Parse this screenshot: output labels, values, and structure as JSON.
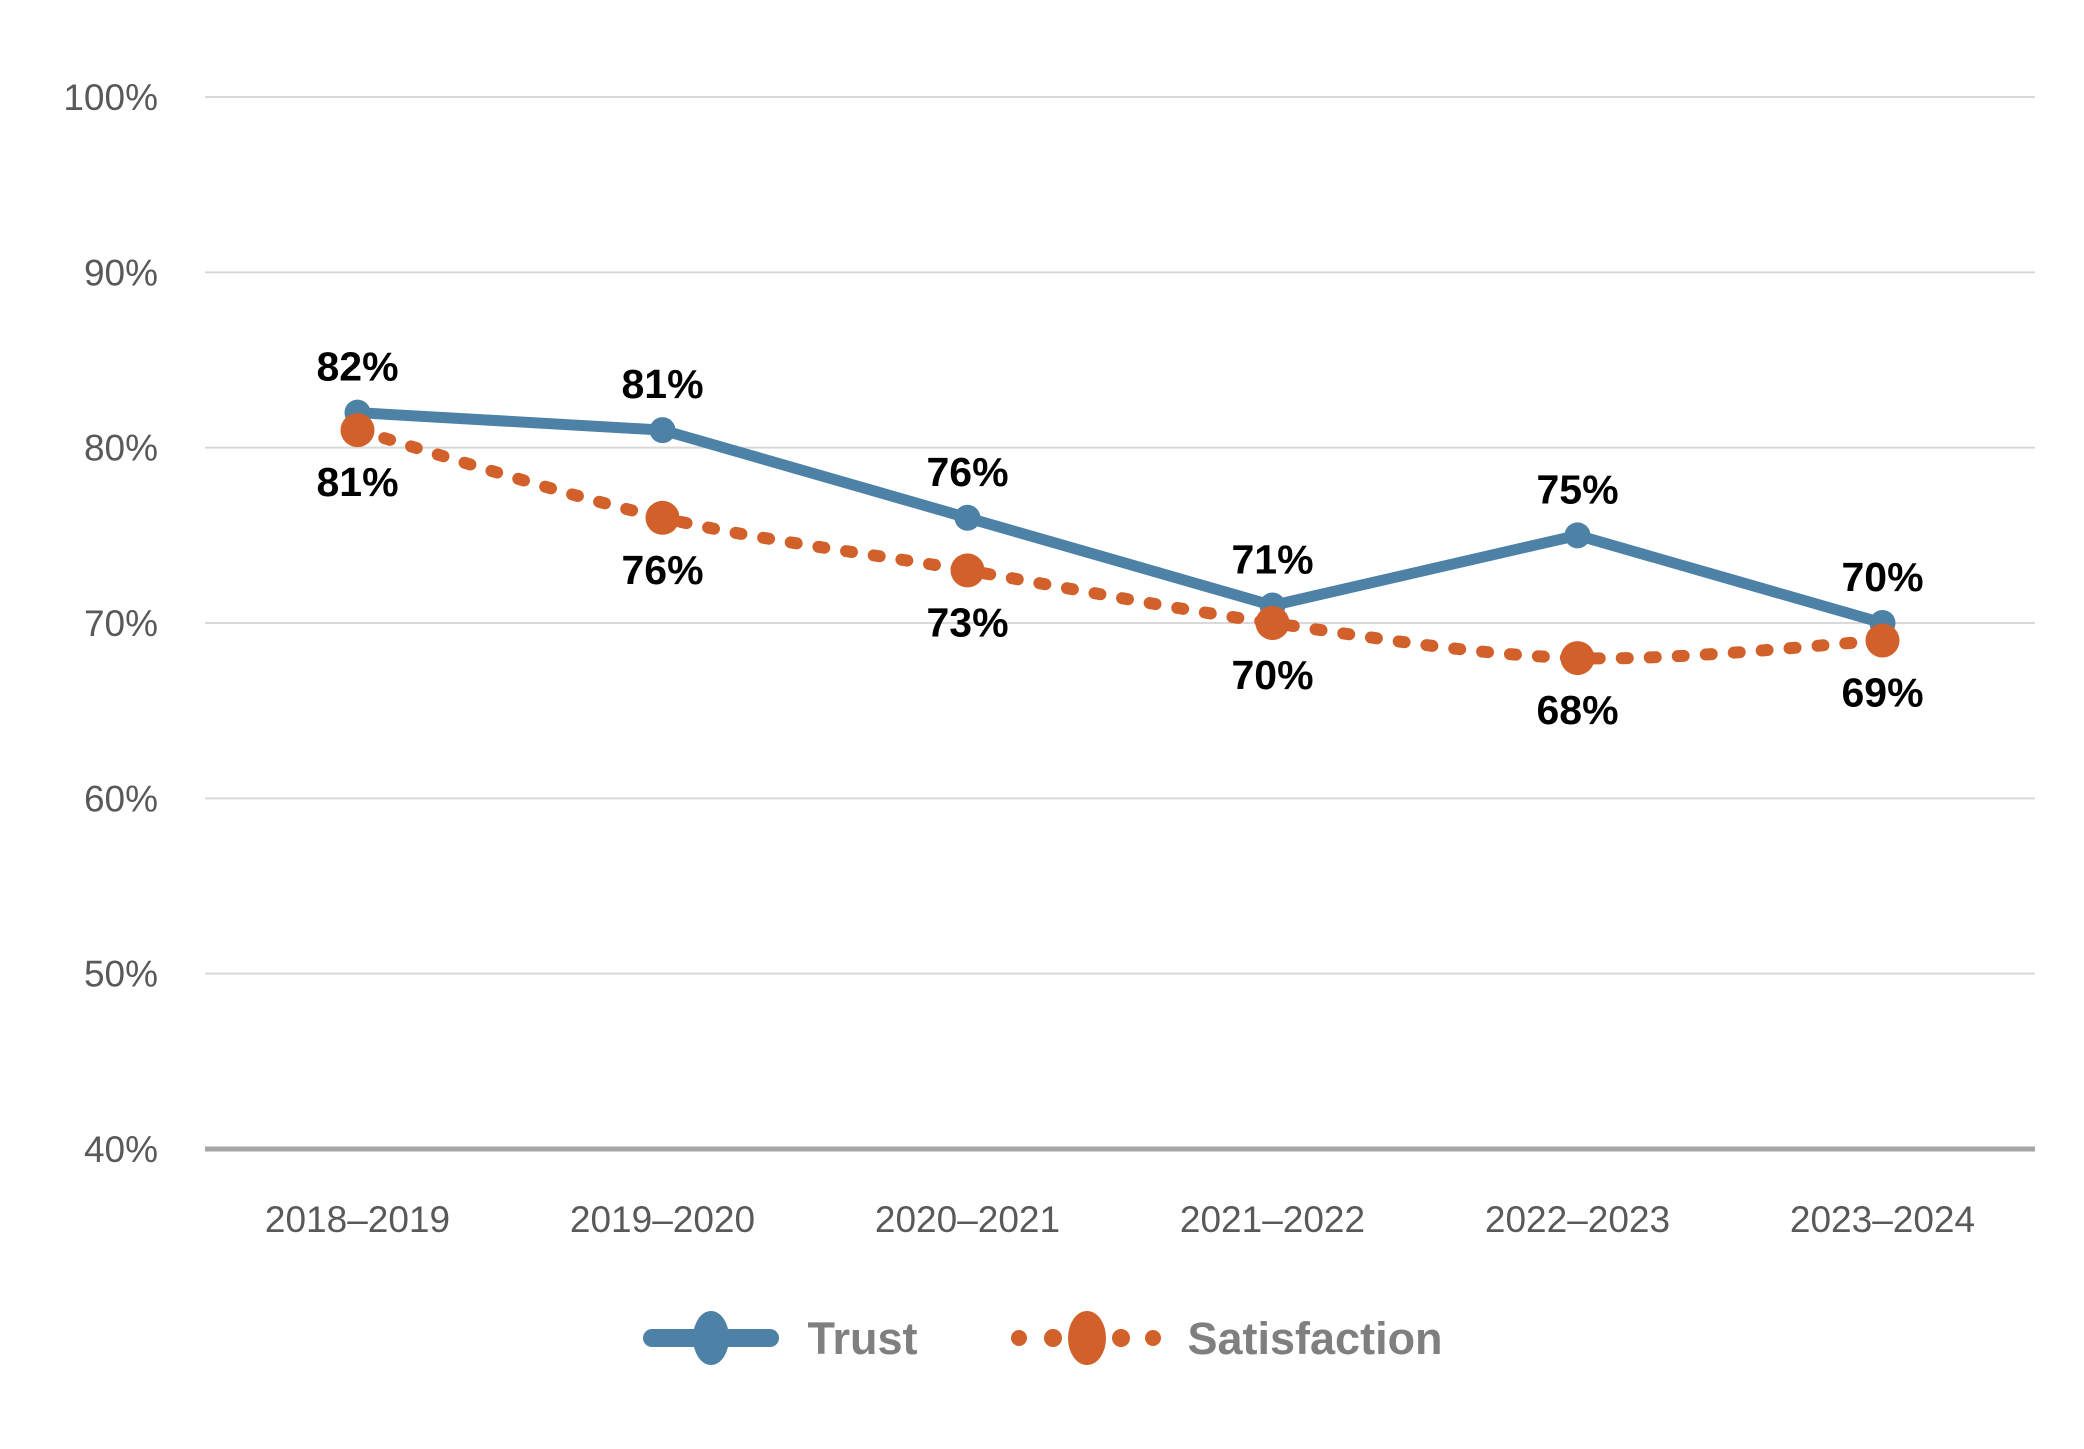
{
  "chart_data": {
    "type": "line",
    "title": "",
    "categories": [
      "2018–2019",
      "2019–2020",
      "2020–2021",
      "2021–2022",
      "2022–2023",
      "2023–2024"
    ],
    "series": [
      {
        "name": "Trust",
        "values": [
          82,
          81,
          76,
          71,
          75,
          70
        ],
        "data_labels": [
          "82%",
          "81%",
          "76%",
          "71%",
          "75%",
          "70%"
        ],
        "color": "#4E81A6",
        "line_style": "solid",
        "marker": "circle",
        "label_position": "above"
      },
      {
        "name": "Satisfaction",
        "values": [
          81,
          76,
          73,
          70,
          68,
          69
        ],
        "data_labels": [
          "81%",
          "76%",
          "73%",
          "70%",
          "68%",
          "69%"
        ],
        "color": "#D2602B",
        "line_style": "dotted",
        "marker": "circle",
        "label_position": "below"
      }
    ],
    "xlabel": "",
    "ylabel": "",
    "ylim": [
      40,
      100
    ],
    "ytick_labels": [
      "100%",
      "90%",
      "80%",
      "70%",
      "60%",
      "50%",
      "40%"
    ],
    "ytick_values": [
      100,
      90,
      80,
      70,
      60,
      50,
      40
    ],
    "grid": true,
    "legend_position": "bottom",
    "colors": {
      "gridline": "#D9D9D9",
      "axis_line": "#A6A6A6",
      "axis_text": "#595959",
      "data_label_text": "#000000",
      "legend_text": "#7F7F7F",
      "background": "#FFFFFF"
    }
  }
}
